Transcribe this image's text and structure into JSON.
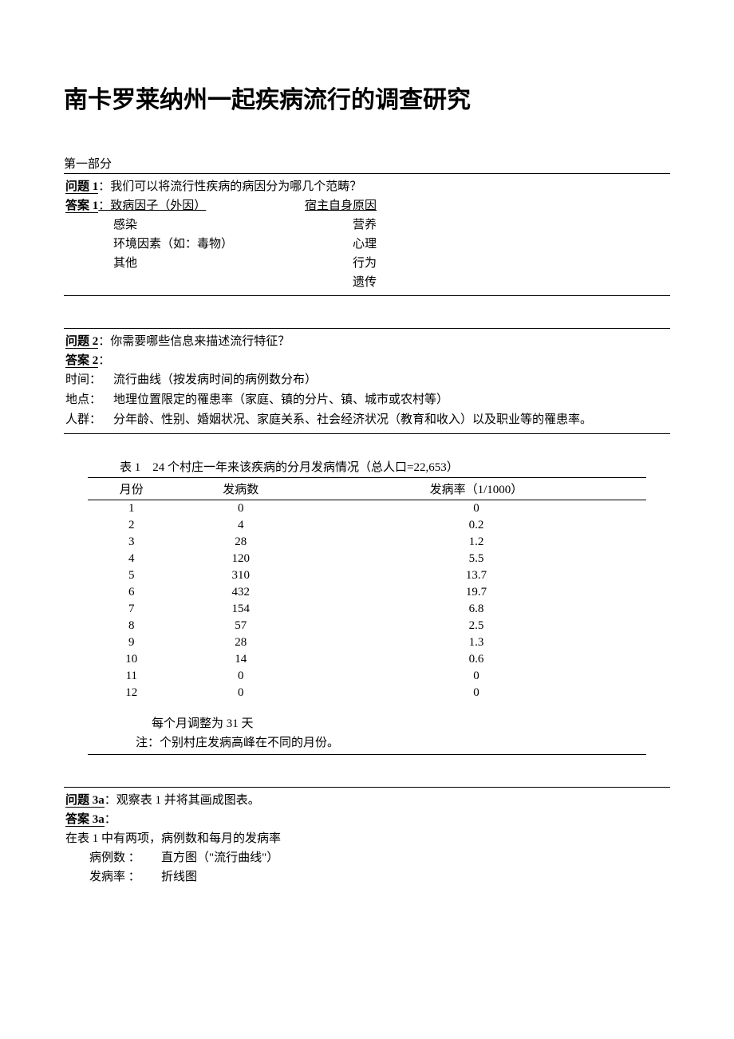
{
  "title": "南卡罗莱纳州一起疾病流行的调查研究",
  "section1_label": "第一部分",
  "q1": {
    "label": "问题 1",
    "text": "：我们可以将流行性疾病的病因分为哪几个范畴？"
  },
  "a1": {
    "label": "答案 1",
    "left_header": "：致病因子（外因）",
    "right_header": "宿主自身原因",
    "left_items": [
      "感染",
      "环境因素（如：毒物）",
      "其他"
    ],
    "right_items": [
      "营养",
      "心理",
      "行为",
      "遗传"
    ]
  },
  "q2": {
    "label": "问题 2",
    "text": "：你需要哪些信息来描述流行特征？"
  },
  "a2": {
    "label": "答案 2",
    "rows": [
      {
        "term": "时间：",
        "desc": "流行曲线（按发病时间的病例数分布）"
      },
      {
        "term": "地点：",
        "desc": "地理位置限定的罹患率（家庭、镇的分片、镇、城市或农村等）"
      },
      {
        "term": "人群：",
        "desc": "分年龄、性别、婚姻状况、家庭关系、社会经济状况（教育和收入）以及职业等的罹患率。"
      }
    ]
  },
  "table1": {
    "caption": "表 1　24 个村庄一年来该疾病的分月发病情况（总人口=22,653）",
    "columns": [
      "月份",
      "发病数",
      "发病率（1/1000）"
    ],
    "rows": [
      [
        "1",
        "0",
        "0"
      ],
      [
        "2",
        "4",
        "0.2"
      ],
      [
        "3",
        "28",
        "1.2"
      ],
      [
        "4",
        "120",
        "5.5"
      ],
      [
        "5",
        "310",
        "13.7"
      ],
      [
        "6",
        "432",
        "19.7"
      ],
      [
        "7",
        "154",
        "6.8"
      ],
      [
        "8",
        "57",
        "2.5"
      ],
      [
        "9",
        "28",
        "1.3"
      ],
      [
        "10",
        "14",
        "0.6"
      ],
      [
        "11",
        "0",
        "0"
      ],
      [
        "12",
        "0",
        "0"
      ]
    ],
    "note1": "每个月调整为 31 天",
    "note2": "注：个别村庄发病高峰在不同的月份。"
  },
  "q3a": {
    "label": "问题 3a",
    "text": "：观察表 1 并将其画成图表。"
  },
  "a3a": {
    "label": "答案 3a",
    "intro": "在表 1 中有两项，病例数和每月的发病率",
    "rows": [
      {
        "term": "病例数 ：",
        "desc": "直方图（\"流行曲线\"）"
      },
      {
        "term": "发病率 ：",
        "desc": "折线图"
      }
    ]
  }
}
